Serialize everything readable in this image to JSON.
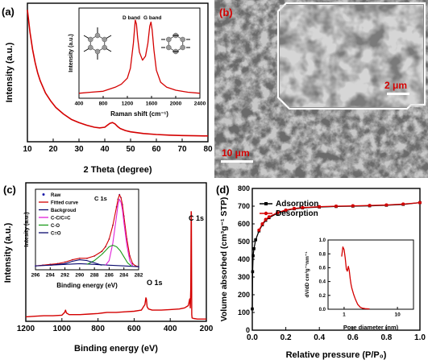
{
  "figure": {
    "panel_labels": [
      "(a)",
      "(b)",
      "(c)",
      "(d)"
    ],
    "colors": {
      "red": "#d40000",
      "black": "#000000",
      "blue": "#1a1aa8",
      "magenta": "#e020d8",
      "green": "#1a9a1a",
      "navy": "#0a0a6e"
    }
  },
  "chart_data": [
    {
      "id": "a_xrd",
      "type": "line",
      "xlabel": "2 Theta (degree)",
      "ylabel": "Intensity (a.u.)",
      "xlim": [
        10,
        80
      ],
      "xticks": [
        10,
        20,
        30,
        40,
        50,
        60,
        70,
        80
      ],
      "series": [
        {
          "color": "#d40000",
          "x": [
            10,
            11,
            12,
            13,
            14,
            15,
            17,
            19,
            21,
            24,
            27,
            30,
            33,
            36,
            38,
            40,
            41,
            42,
            43,
            44,
            45,
            46,
            48,
            50,
            55,
            60,
            65,
            70,
            75,
            80
          ],
          "y": [
            1.0,
            0.83,
            0.7,
            0.6,
            0.52,
            0.46,
            0.37,
            0.31,
            0.26,
            0.21,
            0.17,
            0.145,
            0.125,
            0.11,
            0.105,
            0.11,
            0.125,
            0.14,
            0.145,
            0.135,
            0.115,
            0.1,
            0.085,
            0.075,
            0.062,
            0.055,
            0.05,
            0.047,
            0.045,
            0.044
          ]
        }
      ]
    },
    {
      "id": "a_raman_inset",
      "type": "line",
      "xlabel": "Raman shift (cm⁻¹)",
      "ylabel": "Intensity (a.u.)",
      "xlim": [
        400,
        2400
      ],
      "xticks": [
        400,
        800,
        1200,
        1600,
        2000,
        2400
      ],
      "annotations": [
        "D band",
        "G band"
      ],
      "series": [
        {
          "color": "#d40000",
          "x": [
            400,
            600,
            800,
            900,
            1000,
            1100,
            1200,
            1250,
            1300,
            1330,
            1350,
            1370,
            1400,
            1450,
            1500,
            1540,
            1570,
            1590,
            1610,
            1640,
            1680,
            1750,
            1850,
            2000,
            2200,
            2400
          ],
          "y": [
            0.05,
            0.06,
            0.07,
            0.09,
            0.11,
            0.14,
            0.2,
            0.3,
            0.55,
            0.78,
            0.74,
            0.6,
            0.46,
            0.38,
            0.42,
            0.55,
            0.72,
            0.76,
            0.68,
            0.48,
            0.28,
            0.16,
            0.11,
            0.08,
            0.06,
            0.05
          ]
        }
      ]
    },
    {
      "id": "c_xps",
      "type": "line",
      "xlabel": "Binding energy (eV)",
      "ylabel": "Intensity (a.u.)",
      "xlim": [
        1200,
        200
      ],
      "xticks": [
        1200,
        1000,
        800,
        600,
        400,
        200
      ],
      "annotations": [
        "C 1s",
        "O 1s"
      ],
      "series": [
        {
          "color": "#d40000",
          "x": [
            1200,
            1150,
            1100,
            1050,
            1000,
            985,
            980,
            975,
            960,
            900,
            850,
            800,
            750,
            700,
            650,
            600,
            560,
            540,
            535,
            532,
            528,
            520,
            500,
            450,
            400,
            350,
            320,
            300,
            292,
            289,
            286,
            284,
            283,
            281,
            279,
            270,
            250,
            200
          ],
          "y": [
            0.04,
            0.045,
            0.05,
            0.05,
            0.055,
            0.08,
            0.1,
            0.075,
            0.06,
            0.06,
            0.065,
            0.07,
            0.08,
            0.08,
            0.085,
            0.09,
            0.1,
            0.15,
            0.21,
            0.2,
            0.13,
            0.11,
            0.1,
            0.1,
            0.105,
            0.11,
            0.12,
            0.14,
            0.2,
            0.12,
            0.3,
            0.98,
            0.97,
            0.06,
            0.03,
            0.025,
            0.02,
            0.02
          ]
        }
      ]
    },
    {
      "id": "c_c1s_inset",
      "type": "line",
      "title": "C 1s",
      "xlabel": "Binding energy (eV)",
      "ylabel": "Intesity (a.u.)",
      "xlim": [
        296,
        282
      ],
      "xticks": [
        296,
        294,
        292,
        290,
        288,
        286,
        284,
        282
      ],
      "legend": [
        "Raw",
        "Fitted curve",
        "Backgroud",
        "C-C/C=C",
        "C-O",
        "C=O"
      ],
      "series": [
        {
          "name": "Raw",
          "color": "#1a1aa8",
          "x": [
            296,
            295,
            294,
            293,
            292,
            291,
            290,
            289,
            288,
            287,
            286.5,
            286,
            285.5,
            285,
            284.8,
            284.6,
            284.4,
            284.2,
            284,
            283.6,
            283.2,
            282.8,
            282.4,
            282
          ],
          "y": [
            0.05,
            0.06,
            0.07,
            0.08,
            0.1,
            0.13,
            0.15,
            0.15,
            0.18,
            0.24,
            0.3,
            0.4,
            0.58,
            0.82,
            0.92,
            0.98,
            0.94,
            0.85,
            0.7,
            0.4,
            0.18,
            0.08,
            0.05,
            0.04
          ]
        },
        {
          "name": "Fitted curve",
          "color": "#d40000",
          "x": [
            296,
            295,
            294,
            293,
            292,
            291,
            290,
            289,
            288,
            287,
            286.5,
            286,
            285.5,
            285,
            284.8,
            284.6,
            284.4,
            284.2,
            284,
            283.6,
            283.2,
            282.8,
            282.4,
            282
          ],
          "y": [
            0.05,
            0.06,
            0.07,
            0.08,
            0.1,
            0.13,
            0.15,
            0.15,
            0.18,
            0.24,
            0.3,
            0.4,
            0.58,
            0.82,
            0.92,
            0.98,
            0.94,
            0.85,
            0.7,
            0.4,
            0.18,
            0.08,
            0.05,
            0.04
          ]
        },
        {
          "name": "Backgroud",
          "color": "#0a0a6e",
          "x": [
            296,
            292,
            290,
            288,
            286,
            284,
            282
          ],
          "y": [
            0.05,
            0.07,
            0.08,
            0.07,
            0.06,
            0.05,
            0.04
          ]
        },
        {
          "name": "C-C/C=C",
          "color": "#e020d8",
          "x": [
            286.5,
            286,
            285.5,
            285,
            284.8,
            284.6,
            284.4,
            284.2,
            284,
            283.6,
            283.2,
            282.8
          ],
          "y": [
            0.06,
            0.12,
            0.35,
            0.7,
            0.85,
            0.92,
            0.88,
            0.78,
            0.62,
            0.32,
            0.12,
            0.05
          ]
        },
        {
          "name": "C-O",
          "color": "#1a9a1a",
          "x": [
            289,
            288,
            287,
            286.5,
            286,
            285.5,
            285,
            284.5,
            284,
            283.5,
            283
          ],
          "y": [
            0.07,
            0.12,
            0.2,
            0.25,
            0.3,
            0.32,
            0.3,
            0.25,
            0.17,
            0.09,
            0.05
          ]
        },
        {
          "name": "C=O",
          "color": "#0a0a6e",
          "x": [
            294,
            292,
            291,
            290,
            289,
            288,
            287
          ],
          "y": [
            0.06,
            0.08,
            0.11,
            0.13,
            0.12,
            0.09,
            0.06
          ]
        }
      ]
    },
    {
      "id": "d_bet",
      "type": "line",
      "xlabel": "Relative pressure (P/P₀)",
      "ylabel": "Volume absorbed (cm³g⁻¹ STP)",
      "xlim": [
        0.0,
        1.0
      ],
      "ylim": [
        0,
        800
      ],
      "xticks": [
        0.0,
        0.2,
        0.4,
        0.6,
        0.8,
        1.0
      ],
      "yticks": [
        0,
        100,
        200,
        300,
        400,
        500,
        600,
        700,
        800
      ],
      "legend": [
        "Adsorption",
        "Desorption"
      ],
      "series": [
        {
          "name": "Adsorption",
          "color": "#000000",
          "x": [
            0.0,
            0.002,
            0.005,
            0.01,
            0.02,
            0.04,
            0.06,
            0.08,
            0.1,
            0.15,
            0.2,
            0.25,
            0.3,
            0.4,
            0.5,
            0.6,
            0.7,
            0.8,
            0.9,
            1.0
          ],
          "y": [
            120,
            330,
            420,
            460,
            510,
            560,
            595,
            620,
            635,
            660,
            675,
            685,
            690,
            695,
            698,
            700,
            702,
            705,
            710,
            720
          ]
        },
        {
          "name": "Desorption",
          "color": "#d40000",
          "x": [
            1.0,
            0.9,
            0.8,
            0.7,
            0.6,
            0.5,
            0.4,
            0.3,
            0.25,
            0.2,
            0.15,
            0.1,
            0.08,
            0.06,
            0.04
          ],
          "y": [
            720,
            712,
            707,
            704,
            702,
            700,
            697,
            692,
            687,
            678,
            663,
            640,
            625,
            600,
            565
          ]
        }
      ]
    },
    {
      "id": "d_pore_inset",
      "type": "line",
      "xlabel": "Pore diameter (nm)",
      "ylabel": "dV/dD cm³g⁻¹nm⁻¹",
      "xscale": "log",
      "xlim": [
        0.5,
        20
      ],
      "ylim": [
        0,
        1.0
      ],
      "xtick_labels": [
        "1",
        "10"
      ],
      "yticks": [
        0.0,
        0.2,
        0.4,
        0.6,
        0.8,
        1.0
      ],
      "series": [
        {
          "color": "#d40000",
          "x": [
            0.9,
            0.95,
            1.0,
            1.05,
            1.1,
            1.15,
            1.2,
            1.25,
            1.3,
            1.35,
            1.4,
            1.5,
            1.6,
            1.7,
            1.8,
            1.9,
            2.0,
            2.2,
            2.5,
            3.0
          ],
          "y": [
            0.76,
            0.9,
            0.86,
            0.74,
            0.58,
            0.55,
            0.62,
            0.56,
            0.44,
            0.36,
            0.3,
            0.22,
            0.16,
            0.11,
            0.07,
            0.05,
            0.03,
            0.015,
            0.008,
            0.005
          ]
        }
      ]
    }
  ],
  "panel_b": {
    "scale_bar_main": "10 μm",
    "scale_bar_inset": "2 μm"
  }
}
